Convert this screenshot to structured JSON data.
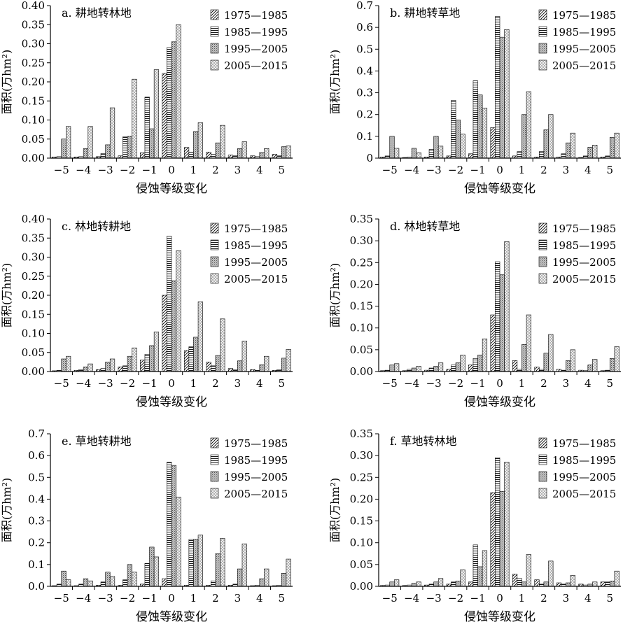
{
  "figure": {
    "xlabel": "侵蚀等级变化",
    "ylabel": "面积(万hm²)"
  },
  "chart_data": [
    {
      "type": "bar",
      "title": "a. 耕地转林地",
      "categories": [
        "−5",
        "−4",
        "−3",
        "−2",
        "−1",
        "0",
        "1",
        "2",
        "3",
        "4",
        "5"
      ],
      "ylim": [
        0,
        0.4
      ],
      "yticks": [
        "0.00",
        "0.05",
        "0.10",
        "0.15",
        "0.20",
        "0.25",
        "0.30",
        "0.35",
        "0.40"
      ],
      "xlabel": "侵蚀等级变化",
      "ylabel": "面积(万hm²)",
      "legend": "top-right",
      "series": [
        {
          "name": "1975—1985",
          "values": [
            0.003,
            0.003,
            0.004,
            0.006,
            0.014,
            0.222,
            0.028,
            0.016,
            0.008,
            0.006,
            0.01
          ]
        },
        {
          "name": "1985—1995",
          "values": [
            0.004,
            0.004,
            0.012,
            0.056,
            0.16,
            0.29,
            0.016,
            0.01,
            0.006,
            0.004,
            0.006
          ]
        },
        {
          "name": "1995—2005",
          "values": [
            0.05,
            0.025,
            0.035,
            0.057,
            0.077,
            0.305,
            0.07,
            0.04,
            0.025,
            0.015,
            0.03
          ]
        },
        {
          "name": "2005—2015",
          "values": [
            0.083,
            0.083,
            0.132,
            0.207,
            0.232,
            0.35,
            0.093,
            0.086,
            0.043,
            0.025,
            0.032
          ]
        }
      ]
    },
    {
      "type": "bar",
      "title": "b. 耕地转草地",
      "categories": [
        "−5",
        "−4",
        "−3",
        "−2",
        "−1",
        "0",
        "1",
        "2",
        "3",
        "4",
        "5"
      ],
      "ylim": [
        0,
        0.7
      ],
      "yticks": [
        "0",
        "0.1",
        "0.2",
        "0.3",
        "0.4",
        "0.5",
        "0.6",
        "0.7"
      ],
      "xlabel": "侵蚀等级变化",
      "ylabel": "面积(万hm²)",
      "legend": "top-right",
      "series": [
        {
          "name": "1975—1985",
          "values": [
            0.005,
            0.003,
            0.005,
            0.01,
            0.02,
            0.14,
            0.01,
            0.005,
            0.005,
            0.003,
            0.005
          ]
        },
        {
          "name": "1985—1995",
          "values": [
            0.01,
            0.005,
            0.04,
            0.265,
            0.355,
            0.65,
            0.03,
            0.03,
            0.02,
            0.01,
            0.01
          ]
        },
        {
          "name": "1995—2005",
          "values": [
            0.1,
            0.045,
            0.1,
            0.175,
            0.29,
            0.555,
            0.2,
            0.13,
            0.07,
            0.05,
            0.095
          ]
        },
        {
          "name": "2005—2015",
          "values": [
            0.045,
            0.025,
            0.055,
            0.11,
            0.23,
            0.59,
            0.305,
            0.2,
            0.115,
            0.06,
            0.115
          ]
        }
      ]
    },
    {
      "type": "bar",
      "title": "c. 林地转耕地",
      "categories": [
        "−5",
        "−4",
        "−3",
        "−2",
        "−1",
        "0",
        "1",
        "2",
        "3",
        "4",
        "5"
      ],
      "ylim": [
        0,
        0.4
      ],
      "yticks": [
        "0.00",
        "0.05",
        "0.10",
        "0.15",
        "0.20",
        "0.25",
        "0.30",
        "0.35",
        "0.40"
      ],
      "xlabel": "侵蚀等级变化",
      "ylabel": "面积(万hm²)",
      "legend": "top-right",
      "series": [
        {
          "name": "1975—1985",
          "values": [
            0.002,
            0.003,
            0.005,
            0.012,
            0.03,
            0.2,
            0.055,
            0.025,
            0.008,
            0.005,
            0.003
          ]
        },
        {
          "name": "1985—1995",
          "values": [
            0.003,
            0.005,
            0.008,
            0.015,
            0.045,
            0.355,
            0.065,
            0.015,
            0.005,
            0.003,
            0.005
          ]
        },
        {
          "name": "1995—2005",
          "values": [
            0.033,
            0.012,
            0.025,
            0.04,
            0.068,
            0.238,
            0.09,
            0.042,
            0.028,
            0.018,
            0.035
          ]
        },
        {
          "name": "2005—2015",
          "values": [
            0.04,
            0.02,
            0.033,
            0.062,
            0.104,
            0.317,
            0.183,
            0.138,
            0.08,
            0.04,
            0.058
          ]
        }
      ]
    },
    {
      "type": "bar",
      "title": "d. 林地转草地",
      "categories": [
        "−5",
        "−4",
        "−3",
        "−2",
        "−1",
        "0",
        "1",
        "2",
        "3",
        "4",
        "5"
      ],
      "ylim": [
        0,
        0.35
      ],
      "yticks": [
        "0.00",
        "0.05",
        "0.10",
        "0.15",
        "0.20",
        "0.25",
        "0.30",
        "0.35"
      ],
      "xlabel": "侵蚀等级变化",
      "ylabel": "面积(万hm²)",
      "legend": "top-right",
      "series": [
        {
          "name": "1975—1985",
          "values": [
            0.002,
            0.002,
            0.003,
            0.005,
            0.015,
            0.13,
            0.025,
            0.01,
            0.005,
            0.003,
            0.002
          ]
        },
        {
          "name": "1985—1995",
          "values": [
            0.003,
            0.005,
            0.008,
            0.015,
            0.03,
            0.252,
            0.005,
            0.005,
            0.003,
            0.002,
            0.003
          ]
        },
        {
          "name": "1995—2005",
          "values": [
            0.015,
            0.008,
            0.012,
            0.02,
            0.038,
            0.222,
            0.062,
            0.042,
            0.025,
            0.015,
            0.03
          ]
        },
        {
          "name": "2005—2015",
          "values": [
            0.018,
            0.012,
            0.02,
            0.038,
            0.075,
            0.298,
            0.13,
            0.085,
            0.05,
            0.028,
            0.057
          ]
        }
      ]
    },
    {
      "type": "bar",
      "title": "e. 草地转耕地",
      "categories": [
        "−5",
        "−4",
        "−3",
        "−2",
        "−1",
        "0",
        "1",
        "2",
        "3",
        "4",
        "5"
      ],
      "ylim": [
        0,
        0.7
      ],
      "yticks": [
        "0.0",
        "0.1",
        "0.2",
        "0.3",
        "0.4",
        "0.5",
        "0.6",
        "0.7"
      ],
      "xlabel": "侵蚀等级变化",
      "ylabel": "面积(万hm²)",
      "legend": "top-right",
      "series": [
        {
          "name": "1975—1985",
          "values": [
            0.003,
            0.003,
            0.005,
            0.005,
            0.01,
            0.035,
            0.005,
            0.005,
            0.005,
            0.003,
            0.003
          ]
        },
        {
          "name": "1985—1995",
          "values": [
            0.01,
            0.01,
            0.02,
            0.03,
            0.105,
            0.57,
            0.215,
            0.025,
            0.01,
            0.005,
            0.005
          ]
        },
        {
          "name": "1995—2005",
          "values": [
            0.07,
            0.035,
            0.065,
            0.1,
            0.18,
            0.555,
            0.215,
            0.15,
            0.08,
            0.035,
            0.06
          ]
        },
        {
          "name": "2005—2015",
          "values": [
            0.03,
            0.025,
            0.045,
            0.065,
            0.135,
            0.41,
            0.235,
            0.22,
            0.195,
            0.08,
            0.125
          ]
        }
      ]
    },
    {
      "type": "bar",
      "title": "f. 草地转林地",
      "categories": [
        "−5",
        "−4",
        "−3",
        "−2",
        "−1",
        "0",
        "1",
        "2",
        "3",
        "4",
        "5"
      ],
      "ylim": [
        0,
        0.35
      ],
      "yticks": [
        "0.00",
        "0.05",
        "0.10",
        "0.15",
        "0.20",
        "0.25",
        "0.30",
        "0.35"
      ],
      "xlabel": "侵蚀等级变化",
      "ylabel": "面积(万hm²)",
      "legend": "top-right",
      "series": [
        {
          "name": "1975—1985",
          "values": [
            0.002,
            0.002,
            0.003,
            0.005,
            0.01,
            0.215,
            0.028,
            0.015,
            0.008,
            0.005,
            0.01
          ]
        },
        {
          "name": "1985—1995",
          "values": [
            0.003,
            0.003,
            0.005,
            0.01,
            0.095,
            0.295,
            0.018,
            0.005,
            0.005,
            0.003,
            0.01
          ]
        },
        {
          "name": "1995—2005",
          "values": [
            0.01,
            0.007,
            0.01,
            0.012,
            0.045,
            0.218,
            0.01,
            0.01,
            0.008,
            0.005,
            0.012
          ]
        },
        {
          "name": "2005—2015",
          "values": [
            0.015,
            0.01,
            0.018,
            0.038,
            0.082,
            0.285,
            0.073,
            0.058,
            0.025,
            0.01,
            0.035
          ]
        }
      ]
    }
  ]
}
